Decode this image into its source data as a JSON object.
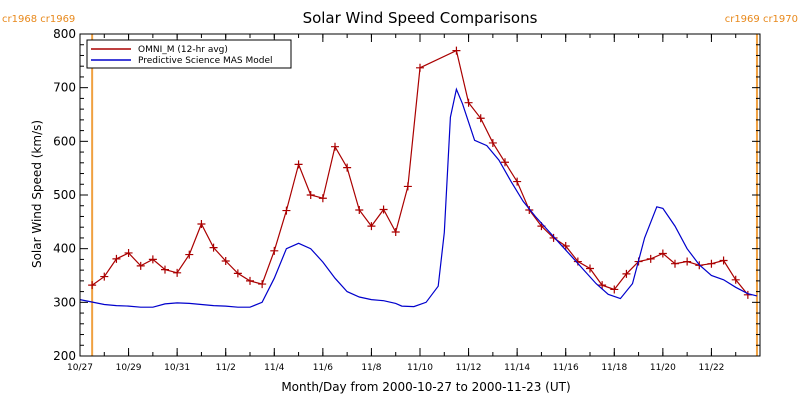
{
  "chart_data": {
    "type": "line",
    "title": "Solar Wind Speed Comparisons",
    "xlabel": "Month/Day from 2000-10-27 to 2000-11-23 (UT)",
    "ylabel": "Solar Wind Speed (km/s)",
    "xlim": [
      "2000-10-27",
      "2000-11-24"
    ],
    "ylim": [
      200,
      800
    ],
    "y_ticks": [
      200,
      300,
      400,
      500,
      600,
      700,
      800
    ],
    "x_tick_labels": [
      {
        "date": "2000-10-27",
        "label": "10/27"
      },
      {
        "date": "2000-10-29",
        "label": "10/29"
      },
      {
        "date": "2000-10-31",
        "label": "10/31"
      },
      {
        "date": "2000-11-02",
        "label": "11/2"
      },
      {
        "date": "2000-11-04",
        "label": "11/4"
      },
      {
        "date": "2000-11-06",
        "label": "11/6"
      },
      {
        "date": "2000-11-08",
        "label": "11/8"
      },
      {
        "date": "2000-11-10",
        "label": "11/10"
      },
      {
        "date": "2000-11-12",
        "label": "11/12"
      },
      {
        "date": "2000-11-14",
        "label": "11/14"
      },
      {
        "date": "2000-11-16",
        "label": "11/16"
      },
      {
        "date": "2000-11-18",
        "label": "11/18"
      },
      {
        "date": "2000-11-20",
        "label": "11/20"
      },
      {
        "date": "2000-11-22",
        "label": "11/22"
      }
    ],
    "legend_position": "top-left",
    "carrington_markers": [
      {
        "date": "2000-10-27 12:00",
        "labels": [
          "cr1968",
          "cr1969"
        ],
        "side": "left"
      },
      {
        "date": "2000-11-23 21:00",
        "labels": [
          "cr1969",
          "cr1970"
        ],
        "side": "right"
      }
    ],
    "series": [
      {
        "name": "OMNI_M (12-hr avg)",
        "color": "#aa0000",
        "marker": "plus",
        "points": [
          [
            "2000-10-27 12:00",
            332
          ],
          [
            "2000-10-28 00:00",
            348
          ],
          [
            "2000-10-28 12:00",
            381
          ],
          [
            "2000-10-29 00:00",
            392
          ],
          [
            "2000-10-29 12:00",
            368
          ],
          [
            "2000-10-30 00:00",
            380
          ],
          [
            "2000-10-30 12:00",
            361
          ],
          [
            "2000-10-31 00:00",
            355
          ],
          [
            "2000-10-31 12:00",
            389
          ],
          [
            "2000-11-01 00:00",
            446
          ],
          [
            "2000-11-01 12:00",
            402
          ],
          [
            "2000-11-02 00:00",
            377
          ],
          [
            "2000-11-02 12:00",
            354
          ],
          [
            "2000-11-03 00:00",
            340
          ],
          [
            "2000-11-03 12:00",
            334
          ],
          [
            "2000-11-04 00:00",
            396
          ],
          [
            "2000-11-04 12:00",
            471
          ],
          [
            "2000-11-05 00:00",
            557
          ],
          [
            "2000-11-05 12:00",
            500
          ],
          [
            "2000-11-06 00:00",
            494
          ],
          [
            "2000-11-06 12:00",
            590
          ],
          [
            "2000-11-07 00:00",
            551
          ],
          [
            "2000-11-07 12:00",
            472
          ],
          [
            "2000-11-08 00:00",
            442
          ],
          [
            "2000-11-08 12:00",
            473
          ],
          [
            "2000-11-09 00:00",
            431
          ],
          [
            "2000-11-09 12:00",
            516
          ],
          [
            "2000-11-10 00:00",
            737
          ],
          [
            "2000-11-11 12:00",
            769
          ],
          [
            "2000-11-12 00:00",
            672
          ],
          [
            "2000-11-12 12:00",
            643
          ],
          [
            "2000-11-13 00:00",
            597
          ],
          [
            "2000-11-13 12:00",
            561
          ],
          [
            "2000-11-14 00:00",
            525
          ],
          [
            "2000-11-14 12:00",
            472
          ],
          [
            "2000-11-15 00:00",
            442
          ],
          [
            "2000-11-15 12:00",
            420
          ],
          [
            "2000-11-16 00:00",
            405
          ],
          [
            "2000-11-16 12:00",
            376
          ],
          [
            "2000-11-17 00:00",
            363
          ],
          [
            "2000-11-17 12:00",
            332
          ],
          [
            "2000-11-18 00:00",
            324
          ],
          [
            "2000-11-18 12:00",
            353
          ],
          [
            "2000-11-19 00:00",
            376
          ],
          [
            "2000-11-19 12:00",
            381
          ],
          [
            "2000-11-20 00:00",
            391
          ],
          [
            "2000-11-20 12:00",
            372
          ],
          [
            "2000-11-21 00:00",
            376
          ],
          [
            "2000-11-21 12:00",
            369
          ],
          [
            "2000-11-22 00:00",
            372
          ],
          [
            "2000-11-22 12:00",
            378
          ],
          [
            "2000-11-23 00:00",
            342
          ],
          [
            "2000-11-23 12:00",
            314
          ]
        ]
      },
      {
        "name": "Predictive Science MAS Model",
        "color": "#0000cc",
        "marker": "none",
        "points": [
          [
            "2000-10-27 00:00",
            305
          ],
          [
            "2000-10-28 00:00",
            296
          ],
          [
            "2000-10-28 12:00",
            294
          ],
          [
            "2000-10-29 00:00",
            293
          ],
          [
            "2000-10-29 12:00",
            291
          ],
          [
            "2000-10-30 00:00",
            291
          ],
          [
            "2000-10-30 12:00",
            297
          ],
          [
            "2000-10-31 00:00",
            299
          ],
          [
            "2000-10-31 12:00",
            298
          ],
          [
            "2000-11-01 00:00",
            296
          ],
          [
            "2000-11-01 12:00",
            294
          ],
          [
            "2000-11-02 00:00",
            293
          ],
          [
            "2000-11-02 12:00",
            291
          ],
          [
            "2000-11-03 00:00",
            291
          ],
          [
            "2000-11-03 12:00",
            300
          ],
          [
            "2000-11-04 00:00",
            345
          ],
          [
            "2000-11-04 12:00",
            400
          ],
          [
            "2000-11-05 00:00",
            410
          ],
          [
            "2000-11-05 12:00",
            400
          ],
          [
            "2000-11-06 00:00",
            375
          ],
          [
            "2000-11-06 12:00",
            345
          ],
          [
            "2000-11-07 00:00",
            320
          ],
          [
            "2000-11-07 12:00",
            310
          ],
          [
            "2000-11-08 00:00",
            305
          ],
          [
            "2000-11-08 12:00",
            303
          ],
          [
            "2000-11-09 00:00",
            298
          ],
          [
            "2000-11-09 06:00",
            293
          ],
          [
            "2000-11-09 18:00",
            292
          ],
          [
            "2000-11-10 06:00",
            300
          ],
          [
            "2000-11-10 18:00",
            330
          ],
          [
            "2000-11-11 00:00",
            430
          ],
          [
            "2000-11-11 06:00",
            645
          ],
          [
            "2000-11-11 12:00",
            697
          ],
          [
            "2000-11-11 18:00",
            670
          ],
          [
            "2000-11-12 06:00",
            602
          ],
          [
            "2000-11-12 18:00",
            592
          ],
          [
            "2000-11-13 06:00",
            565
          ],
          [
            "2000-11-13 18:00",
            525
          ],
          [
            "2000-11-14 06:00",
            488
          ],
          [
            "2000-11-14 18:00",
            460
          ],
          [
            "2000-11-15 06:00",
            435
          ],
          [
            "2000-11-15 18:00",
            410
          ],
          [
            "2000-11-16 06:00",
            385
          ],
          [
            "2000-11-16 18:00",
            360
          ],
          [
            "2000-11-17 06:00",
            335
          ],
          [
            "2000-11-17 18:00",
            315
          ],
          [
            "2000-11-18 06:00",
            307
          ],
          [
            "2000-11-18 18:00",
            335
          ],
          [
            "2000-11-19 06:00",
            420
          ],
          [
            "2000-11-19 18:00",
            478
          ],
          [
            "2000-11-20 00:00",
            475
          ],
          [
            "2000-11-20 12:00",
            442
          ],
          [
            "2000-11-21 00:00",
            400
          ],
          [
            "2000-11-21 12:00",
            370
          ],
          [
            "2000-11-22 00:00",
            350
          ],
          [
            "2000-11-22 12:00",
            342
          ],
          [
            "2000-11-23 00:00",
            328
          ],
          [
            "2000-11-23 12:00",
            316
          ],
          [
            "2000-11-23 21:00",
            312
          ]
        ]
      }
    ]
  }
}
